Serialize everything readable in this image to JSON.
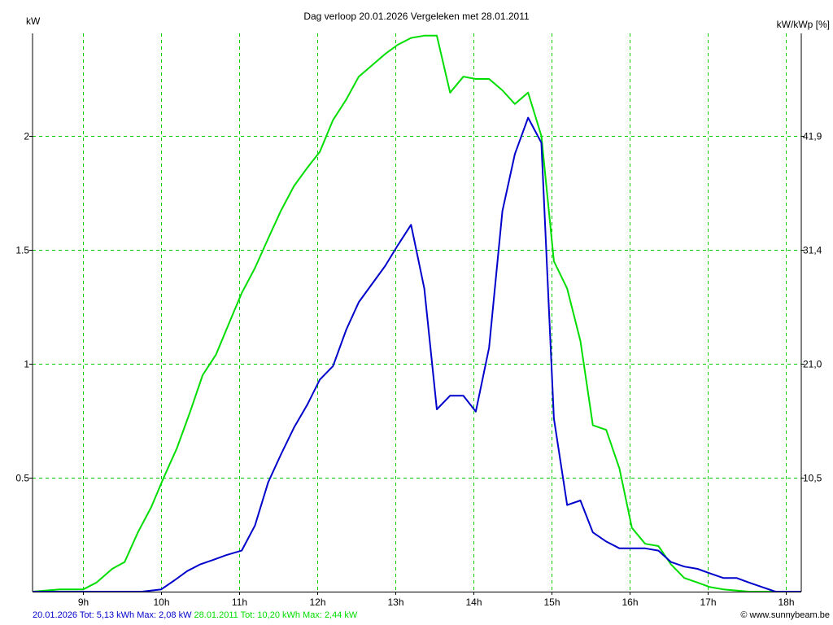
{
  "chart_data": {
    "type": "line",
    "title": "Dag  verloop 20.01.2026   Vergeleken met 28.01.2011",
    "ylabel_left": "kW",
    "ylabel_right": "kW/kWp [%]",
    "xlim": [
      8.35,
      18.2
    ],
    "ylim": [
      0,
      2.45
    ],
    "x_ticks": [
      9,
      10,
      11,
      12,
      13,
      14,
      15,
      16,
      17,
      18
    ],
    "x_tick_labels": [
      "9h",
      "10h",
      "11h",
      "12h",
      "13h",
      "14h",
      "15h",
      "16h",
      "17h",
      "18h"
    ],
    "y_ticks": [
      0.5,
      1,
      1.5,
      2
    ],
    "y_tick_labels": [
      "0.5",
      "1",
      "1.5",
      "2"
    ],
    "y2_ticks": [
      0.5,
      1,
      1.5,
      2
    ],
    "y2_tick_labels": [
      "10,5",
      "21,0",
      "31,4",
      "41,9"
    ],
    "grid": true,
    "series": [
      {
        "name": "20.01.2026",
        "color": "#0000cc",
        "x": [
          8.35,
          9.17,
          9.55,
          9.75,
          10.0,
          10.17,
          10.33,
          10.5,
          10.67,
          10.83,
          11.03,
          11.2,
          11.37,
          11.53,
          11.7,
          11.87,
          12.03,
          12.2,
          12.37,
          12.53,
          12.7,
          12.87,
          13.03,
          13.2,
          13.37,
          13.53,
          13.7,
          13.87,
          14.03,
          14.2,
          14.37,
          14.53,
          14.7,
          14.87,
          15.03,
          15.2,
          15.37,
          15.53,
          15.7,
          15.87,
          16.03,
          16.2,
          16.37,
          16.53,
          16.7,
          16.87,
          17.03,
          17.2,
          17.37,
          17.53,
          17.7,
          17.87,
          18.03,
          18.2
        ],
        "y": [
          0,
          0,
          0,
          0,
          0.01,
          0.05,
          0.09,
          0.12,
          0.14,
          0.16,
          0.18,
          0.29,
          0.48,
          0.6,
          0.72,
          0.82,
          0.93,
          0.99,
          1.15,
          1.27,
          1.35,
          1.43,
          1.52,
          1.61,
          1.33,
          0.8,
          0.86,
          0.86,
          0.79,
          1.07,
          1.67,
          1.92,
          2.08,
          1.97,
          0.76,
          0.38,
          0.4,
          0.26,
          0.22,
          0.19,
          0.19,
          0.19,
          0.18,
          0.13,
          0.11,
          0.1,
          0.08,
          0.06,
          0.06,
          0.04,
          0.02,
          0,
          0,
          0
        ]
      },
      {
        "name": "28.01.2011",
        "color": "#00dd00",
        "x": [
          8.35,
          8.7,
          9.0,
          9.17,
          9.37,
          9.53,
          9.7,
          9.87,
          10.03,
          10.2,
          10.37,
          10.53,
          10.7,
          10.87,
          11.03,
          11.2,
          11.37,
          11.53,
          11.7,
          11.87,
          12.03,
          12.2,
          12.37,
          12.53,
          12.7,
          12.87,
          13.03,
          13.2,
          13.37,
          13.53,
          13.7,
          13.87,
          14.03,
          14.2,
          14.37,
          14.53,
          14.7,
          14.87,
          15.03,
          15.2,
          15.37,
          15.53,
          15.7,
          15.87,
          16.03,
          16.2,
          16.37,
          16.53,
          16.7,
          16.87,
          17.03,
          17.2,
          17.53,
          17.87,
          18.2
        ],
        "y": [
          0,
          0.01,
          0.01,
          0.04,
          0.1,
          0.13,
          0.26,
          0.37,
          0.5,
          0.63,
          0.79,
          0.95,
          1.04,
          1.18,
          1.31,
          1.42,
          1.55,
          1.67,
          1.78,
          1.86,
          1.93,
          2.07,
          2.16,
          2.26,
          2.31,
          2.36,
          2.4,
          2.43,
          2.44,
          2.44,
          2.19,
          2.26,
          2.25,
          2.25,
          2.2,
          2.14,
          2.19,
          2.0,
          1.45,
          1.33,
          1.1,
          0.73,
          0.71,
          0.54,
          0.28,
          0.21,
          0.2,
          0.12,
          0.06,
          0.04,
          0.02,
          0.01,
          0,
          0,
          0
        ]
      }
    ],
    "legend": {
      "placement": "bottom-left",
      "entries": [
        {
          "text": "20.01.2026 Tot: 5,13 kWh Max: 2,08 kW",
          "color": "#0000cc"
        },
        {
          "text": "28.01.2011 Tot: 10,20 kWh Max: 2,44 kW",
          "color": "#00dd00"
        }
      ]
    }
  },
  "credit": {
    "symbol": "©",
    "text": "www.sunnybeam.be"
  },
  "colors": {
    "grid": "#00cc00",
    "axis": "#000000",
    "background": "#ffffff"
  }
}
